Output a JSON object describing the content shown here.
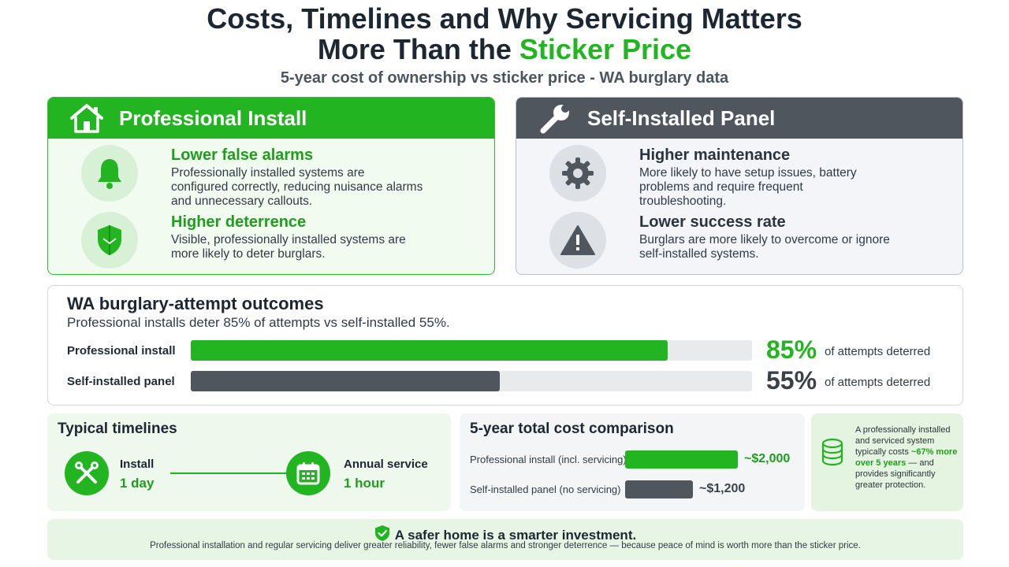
{
  "header": {
    "title_line1": "Costs, Timelines and Why Servicing Matters",
    "title_line2_prefix": "More Than the ",
    "title_line2_accent": "Sticker Price",
    "subtitle": "5-year cost of ownership vs sticker price - WA burglary data"
  },
  "professional": {
    "title": "Professional Install",
    "icon": "house-icon",
    "features": [
      {
        "icon": "bell-icon",
        "title": "Lower false alarms",
        "desc": "Professionally installed systems are configured correctly, reducing nuisance alarms and unnecessary callouts."
      },
      {
        "icon": "shield-icon",
        "title": "Higher deterrence",
        "desc": "Visible, professionally installed systems are more likely to deter burglars."
      }
    ]
  },
  "self_installed": {
    "title": "Self-Installed Panel",
    "icon": "wrench-icon",
    "features": [
      {
        "icon": "gear-icon",
        "title": "Higher maintenance",
        "desc": "More likely to have setup issues, battery problems and require frequent troubleshooting."
      },
      {
        "icon": "warning-icon",
        "title": "Lower success rate",
        "desc": "Burglars are more likely to overcome or ignore self-installed systems."
      }
    ]
  },
  "outcomes": {
    "title": "WA burglary-attempt outcomes",
    "subtitle": "Professional installs deter 85% of attempts vs self-installed 55%.",
    "rows": [
      {
        "label": "Professional install",
        "percent": 85,
        "percent_text": "85%",
        "note": "of attempts deterred",
        "color": "#22b521"
      },
      {
        "label": "Self-installed panel",
        "percent": 55,
        "percent_text": "55%",
        "note": "of attempts deterred",
        "color": "#4f565e"
      }
    ]
  },
  "timelines": {
    "title": "Typical timelines",
    "items": [
      {
        "icon": "tools-icon",
        "name": "Install",
        "value": "1 day"
      },
      {
        "icon": "calendar-icon",
        "name": "Annual service",
        "value": "1 hour"
      }
    ]
  },
  "cost": {
    "title": "5-year total cost comparison",
    "rows": [
      {
        "label": "Professional install (incl. servicing)",
        "amount": 2000,
        "value_text": "~$2,000",
        "color": "#22b521"
      },
      {
        "label": "Self-installed panel (no servicing)",
        "amount": 1200,
        "value_text": "~$1,200",
        "color": "#4f565e"
      }
    ]
  },
  "note": {
    "icon": "coins-icon",
    "text_before": "A professionally installed and serviced system typically costs ",
    "text_highlight": "~67% more over 5 years",
    "text_after": " — and provides significantly greater protection."
  },
  "footer": {
    "icon": "shield-check-icon",
    "headline": "A safer home is a smarter investment.",
    "subline": "Professional installation and regular servicing deliver greater reliability, fewer false alarms and stronger deterrence — because peace of mind is worth more than the sticker price."
  },
  "colors": {
    "accent": "#22b521",
    "dark": "#4f565e"
  }
}
